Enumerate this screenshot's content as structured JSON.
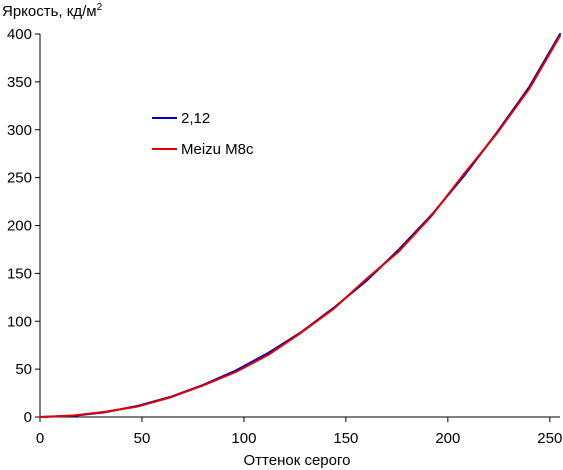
{
  "chart_data": {
    "type": "line",
    "title": "",
    "xlabel": "Оттенок серого",
    "ylabel": "Яркость, кд/м",
    "ylabel_superscript": "2",
    "xlim": [
      0,
      255
    ],
    "ylim": [
      0,
      400
    ],
    "xticks": [
      0,
      50,
      100,
      150,
      200,
      250
    ],
    "yticks": [
      0,
      50,
      100,
      150,
      200,
      250,
      300,
      350,
      400
    ],
    "grid": false,
    "legend_position": "center-left",
    "series": [
      {
        "name": "2,12",
        "color": "#0000c0",
        "x": [
          0,
          16,
          32,
          48,
          64,
          80,
          96,
          112,
          128,
          144,
          160,
          176,
          192,
          208,
          224,
          240,
          255
        ],
        "y": [
          0,
          1.2,
          5,
          11.7,
          21,
          33.5,
          48.5,
          67,
          88.5,
          114,
          142,
          175,
          211,
          252,
          297,
          345,
          400
        ]
      },
      {
        "name": "Meizu M8c",
        "color": "#e00000",
        "x": [
          0,
          16,
          32,
          48,
          64,
          80,
          96,
          112,
          128,
          144,
          160,
          176,
          192,
          208,
          224,
          240,
          255
        ],
        "y": [
          0,
          1.5,
          5.5,
          11,
          20.5,
          33,
          47,
          65,
          88,
          113,
          144,
          173,
          210,
          254,
          296,
          343,
          398
        ]
      }
    ]
  }
}
